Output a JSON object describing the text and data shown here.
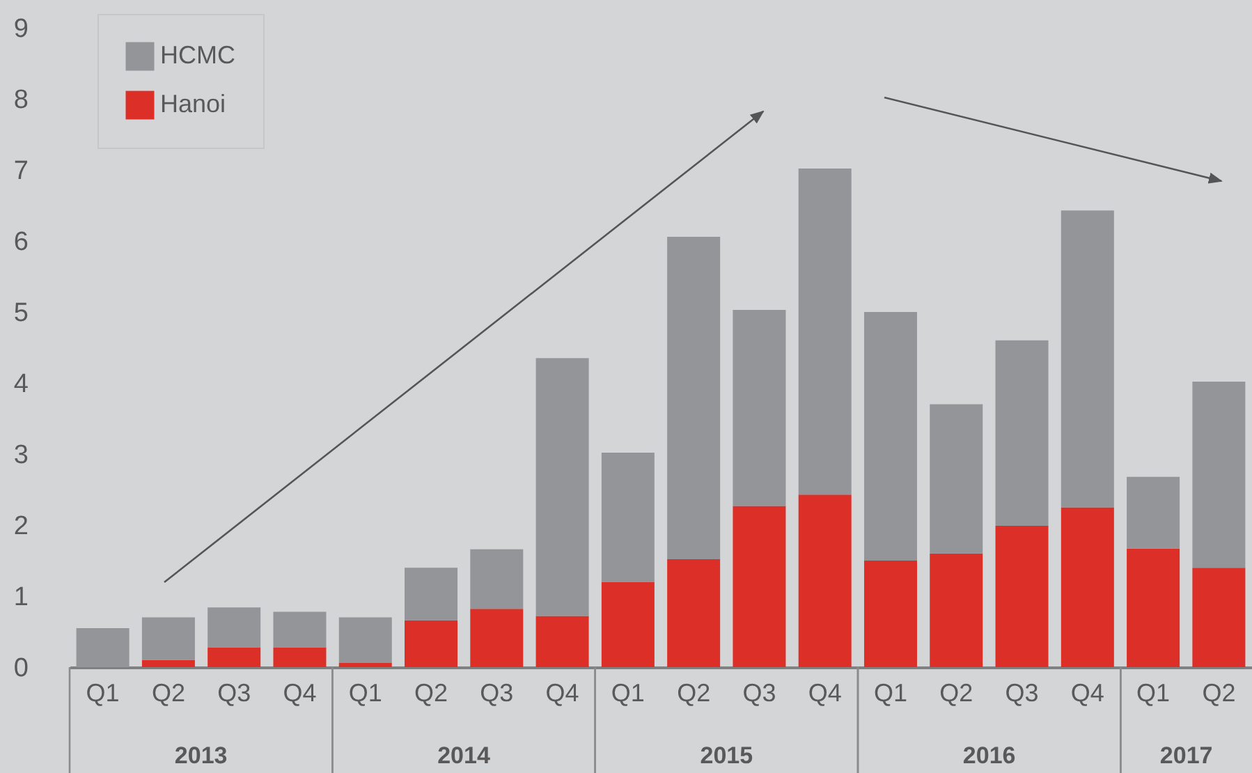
{
  "chart_data": {
    "type": "bar",
    "stacked": true,
    "categories": [
      "Q1",
      "Q2",
      "Q3",
      "Q4",
      "Q1",
      "Q2",
      "Q3",
      "Q4",
      "Q1",
      "Q2",
      "Q3",
      "Q4",
      "Q1",
      "Q2",
      "Q3",
      "Q4",
      "Q1",
      "Q2"
    ],
    "series": [
      {
        "name": "Hanoi",
        "color": "#dc2f27",
        "values": [
          0,
          0.1,
          0.28,
          0.28,
          0.06,
          0.66,
          0.82,
          0.72,
          1.2,
          1.52,
          2.27,
          2.43,
          1.5,
          1.6,
          1.99,
          2.25,
          1.67,
          1.4
        ]
      },
      {
        "name": "HCMC",
        "color": "#949598",
        "values": [
          0.55,
          0.6,
          0.56,
          0.5,
          0.64,
          0.74,
          0.84,
          3.63,
          1.82,
          4.54,
          2.76,
          4.59,
          3.5,
          2.1,
          2.61,
          4.18,
          1.01,
          2.62
        ]
      }
    ],
    "ylim": [
      0,
      9
    ],
    "yticks": [
      0,
      1,
      2,
      3,
      4,
      5,
      6,
      7,
      8,
      9
    ],
    "grid": false,
    "legend": "top left",
    "annotations": [
      "2013",
      "2014",
      "2015",
      "2016",
      "2017"
    ]
  }
}
